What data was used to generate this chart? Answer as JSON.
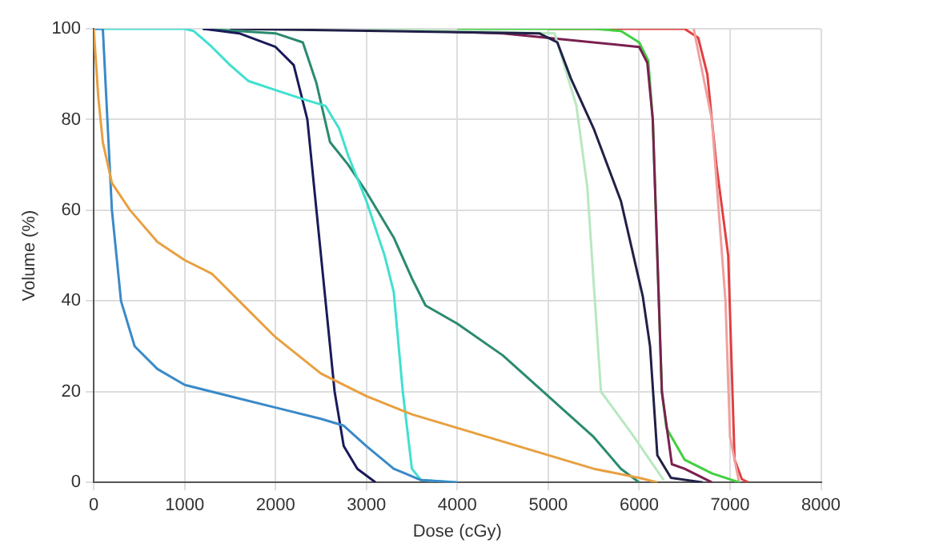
{
  "chart_data": {
    "type": "line",
    "xlabel": "Dose (cGy)",
    "ylabel": "Volume (%)",
    "xlim": [
      0,
      8000
    ],
    "ylim": [
      0,
      100
    ],
    "xticks": [
      0,
      1000,
      2000,
      3000,
      4000,
      5000,
      6000,
      7000,
      8000
    ],
    "yticks": [
      0,
      20,
      40,
      60,
      80,
      100
    ],
    "grid": true,
    "legend": false,
    "marker": "none",
    "line_style": "solid",
    "series": [
      {
        "color": "#e8a040",
        "x": [
          0,
          50,
          100,
          200,
          400,
          700,
          1000,
          1300,
          1600,
          2000,
          2500,
          3000,
          3500,
          4000,
          4500,
          5000,
          5500,
          6000,
          6200
        ],
        "values": [
          100,
          85,
          75,
          66,
          60,
          53,
          49,
          46,
          40,
          32,
          24,
          19,
          15,
          12,
          9,
          6,
          3,
          1,
          0
        ]
      },
      {
        "color": "#3a8ac8",
        "x": [
          0,
          100,
          150,
          200,
          300,
          450,
          700,
          1000,
          1500,
          2000,
          2500,
          2750,
          3000,
          3300,
          3600,
          4000
        ],
        "values": [
          100,
          100,
          80,
          60,
          40,
          30,
          25,
          21.5,
          19,
          16.5,
          14,
          12.5,
          8,
          3,
          0.5,
          0
        ]
      },
      {
        "color": "#40e0d0",
        "x": [
          0,
          1000,
          1100,
          1300,
          1500,
          1700,
          2000,
          2300,
          2550,
          2700,
          2800,
          3000,
          3200,
          3300,
          3400,
          3500,
          3600,
          4000
        ],
        "values": [
          100,
          100,
          99.5,
          96,
          92,
          88.5,
          86.5,
          84.5,
          83,
          78,
          72,
          62,
          50,
          42,
          20,
          3,
          0.5,
          0
        ]
      },
      {
        "color": "#1a1a5a",
        "x": [
          1200,
          1600,
          2000,
          2200,
          2350,
          2450,
          2550,
          2650,
          2750,
          2900,
          3100
        ],
        "values": [
          100,
          99,
          96,
          92,
          80,
          60,
          40,
          20,
          8,
          3,
          0
        ]
      },
      {
        "color": "#2a8a70",
        "x": [
          1200,
          2000,
          2300,
          2450,
          2600,
          2800,
          3000,
          3300,
          3500,
          3650,
          4000,
          4500,
          5000,
          5500,
          5800,
          6000
        ],
        "values": [
          100,
          99,
          97,
          88,
          75,
          70,
          64,
          54,
          45,
          39,
          35,
          28,
          19,
          10,
          3,
          0
        ]
      },
      {
        "color": "#202048",
        "x": [
          1500,
          4900,
          5100,
          5250,
          5500,
          5800,
          6040,
          6120,
          6170,
          6200,
          6350,
          6700
        ],
        "values": [
          100,
          99,
          97,
          89,
          78,
          62,
          41,
          30,
          15,
          6,
          1,
          0
        ]
      },
      {
        "color": "#b8e8c0",
        "x": [
          3000,
          5070,
          5310,
          5430,
          5580,
          5910,
          6270
        ],
        "values": [
          100,
          99,
          83,
          65,
          20,
          11,
          0.5
        ]
      },
      {
        "color": "#7a2050",
        "x": [
          3000,
          4500,
          6000,
          6090,
          6150,
          6200,
          6250,
          6360,
          6500,
          6800
        ],
        "values": [
          100,
          99,
          96,
          92.5,
          80,
          50,
          20,
          4,
          3,
          0
        ]
      },
      {
        "color": "#40d040",
        "x": [
          4000,
          5500,
          5800,
          6000,
          6100,
          6150,
          6200,
          6250,
          6300,
          6500,
          6800,
          7100
        ],
        "values": [
          100,
          100,
          99.5,
          97,
          93,
          80,
          50,
          20,
          12,
          5,
          2,
          0
        ]
      },
      {
        "color": "#f0a0a0",
        "x": [
          6600,
          6800,
          6950,
          7000,
          7100
        ],
        "values": [
          100,
          80,
          40,
          10,
          0
        ]
      },
      {
        "color": "#e04040",
        "x": [
          5000,
          6500,
          6650,
          6750,
          6850,
          6980,
          7050,
          7130,
          7200
        ],
        "values": [
          100,
          100,
          98,
          90,
          70,
          50,
          5,
          0.7,
          0
        ]
      }
    ]
  }
}
